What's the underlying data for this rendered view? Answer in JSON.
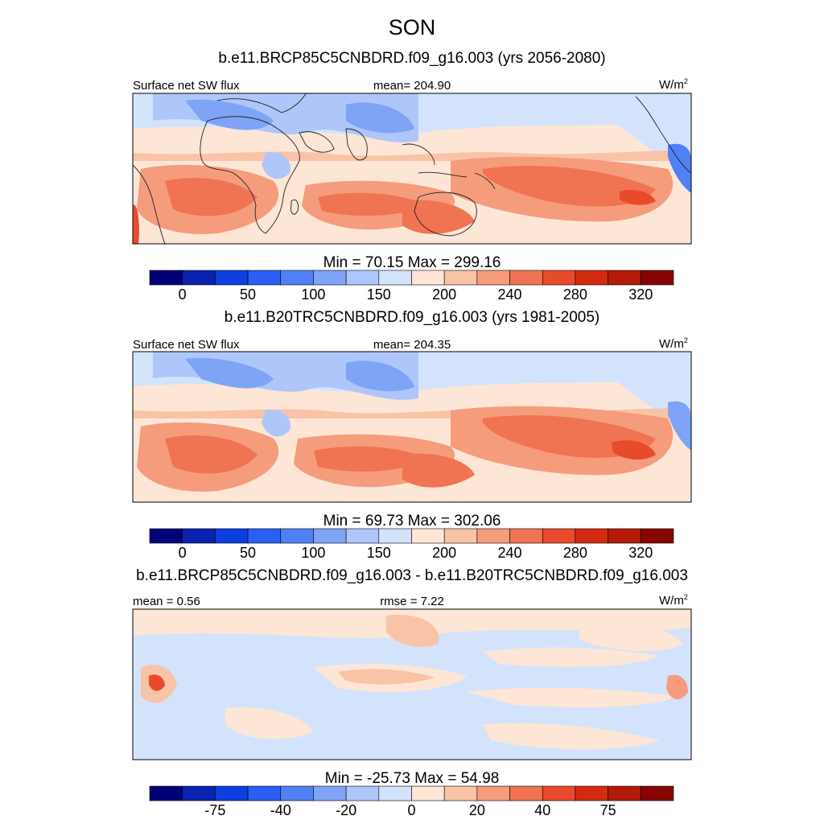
{
  "chart_data": {
    "title": "SON",
    "panels": [
      {
        "type": "heatmap",
        "title": "b.e11.BRCP85C5CNBDRD.f09_g16.003 (yrs 2056-2080)",
        "left_label": "Surface net SW flux",
        "center_label": "mean= 204.90",
        "units": "W/m",
        "units_sup": "2",
        "stats": "Min =  70.15 Max = 299.16",
        "colorbar_ticks": [
          "0",
          "50",
          "100",
          "150",
          "200",
          "240",
          "280",
          "320"
        ],
        "mean": 204.9,
        "min": 70.15,
        "max": 299.16
      },
      {
        "type": "heatmap",
        "title": "b.e11.B20TRC5CNBDRD.f09_g16.003 (yrs 1981-2005)",
        "left_label": "Surface net SW flux",
        "center_label": "mean= 204.35",
        "units": "W/m",
        "units_sup": "2",
        "stats": "Min =  69.73 Max = 302.06",
        "colorbar_ticks": [
          "0",
          "50",
          "100",
          "150",
          "200",
          "240",
          "280",
          "320"
        ],
        "mean": 204.35,
        "min": 69.73,
        "max": 302.06
      },
      {
        "type": "heatmap",
        "title": "b.e11.BRCP85C5CNBDRD.f09_g16.003 - b.e11.B20TRC5CNBDRD.f09_g16.003",
        "left_label": "mean =   0.56",
        "center_label": "rmse =   7.22",
        "units": "W/m",
        "units_sup": "2",
        "stats": "Min = -25.73 Max =  54.98",
        "colorbar_ticks": [
          "-75",
          "-40",
          "-20",
          "0",
          "20",
          "40",
          "75"
        ],
        "mean": 0.56,
        "rmse": 7.22,
        "min": -25.73,
        "max": 54.98
      }
    ],
    "colorbar_colors": [
      "#00007a",
      "#0a22b0",
      "#0d3fe0",
      "#2a5ef5",
      "#4f80f6",
      "#7fa4f6",
      "#aec6fa",
      "#d3e3fc",
      "#fde6d6",
      "#f9c3a7",
      "#f59c7d",
      "#f07352",
      "#e84b2c",
      "#d32b10",
      "#b11b08",
      "#860502"
    ]
  }
}
